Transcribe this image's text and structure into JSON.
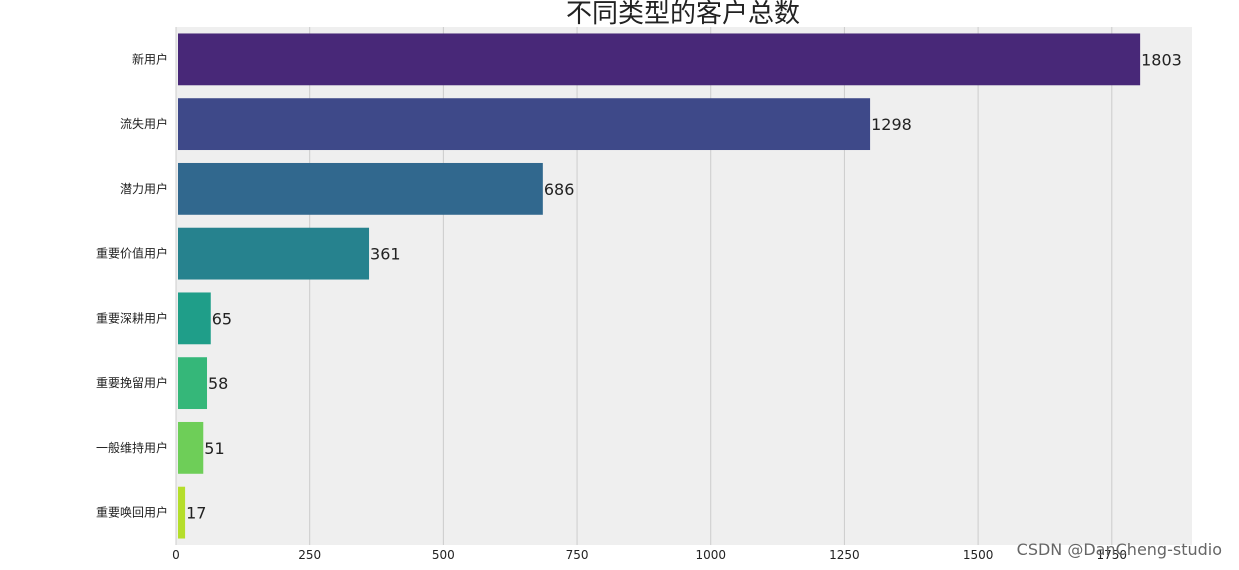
{
  "chart_data": {
    "type": "bar",
    "orientation": "horizontal",
    "title": "不同类型的客户总数",
    "categories": [
      "新用户",
      "流失用户",
      "潜力用户",
      "重要价值用户",
      "重要深耕用户",
      "重要挽留用户",
      "一般维持用户",
      "重要唤回用户"
    ],
    "values": [
      1803,
      1298,
      686,
      361,
      65,
      58,
      51,
      17
    ],
    "bar_colors": [
      "#482878",
      "#3e4989",
      "#31688e",
      "#26828e",
      "#1f9e89",
      "#35b779",
      "#6ece58",
      "#b5de2b"
    ],
    "xlim": [
      0,
      1900
    ],
    "xticks": [
      0,
      250,
      500,
      750,
      1000,
      1250,
      1500,
      1750
    ],
    "xlabel": "",
    "ylabel": "",
    "grid": "vertical",
    "background": "#efefef"
  },
  "watermark": "CSDN @DanCheng-studio"
}
